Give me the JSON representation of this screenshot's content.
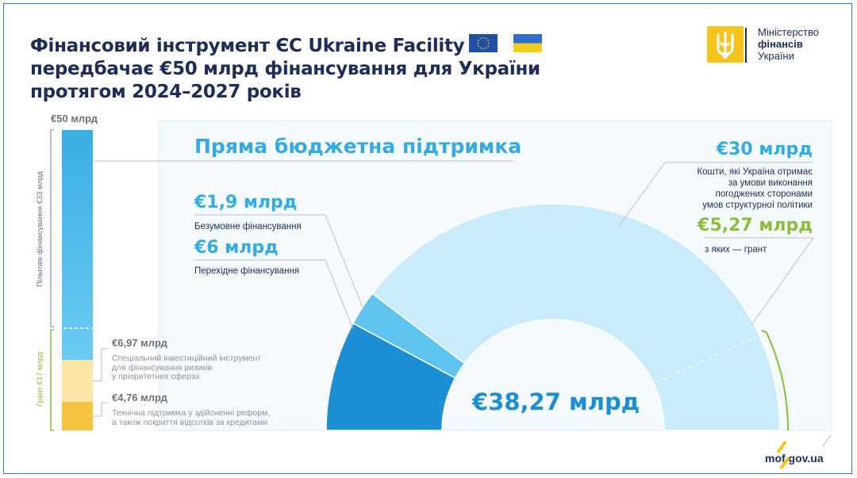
{
  "title_lines": [
    "Фінансовий інструмент ЄС Ukraine Facility",
    "передбачає €50 млрд фінансування для України",
    "протягом 2024–2027 років"
  ],
  "ministry": {
    "line1": "Міністерство",
    "line2": "фінансів",
    "line3": "України"
  },
  "website": "mof.gov.ua",
  "colors": {
    "navy": "#1d2d57",
    "blue": "#34aae3",
    "blue_dark": "#1c8fd4",
    "blue_mid": "#5fc3ef",
    "blue_light": "#c9ebfb",
    "yellow_light": "#fbe6a5",
    "yellow": "#f4c440",
    "green": "#8dbd3e",
    "gray_text": "#6b7380"
  },
  "chart_data": [
    {
      "type": "bar",
      "title": "€50 млрд",
      "stack": [
        {
          "name": "Пільгове фінансування €33 млрд",
          "value": 33
        },
        {
          "name": "€6,97 млрд",
          "value": 6.97
        },
        {
          "name": "€4,76 млрд",
          "value": 4.76
        }
      ],
      "total": 50,
      "brackets": [
        {
          "label": "Пільгове фінансування €33 млрд",
          "value": 33
        },
        {
          "label": "Грант €17 млрд",
          "value": 17
        }
      ],
      "annotations": [
        {
          "amount": "€6,97 млрд",
          "text": [
            "Спеціальний інвестиційний інструмент",
            "для фінансування ризиків",
            "у пріоритетних сферах"
          ]
        },
        {
          "amount": "€4,76 млрд",
          "text": [
            "Технічна підтримка у здійсненні реформ,",
            "а також покриття відсотків за кредитами"
          ]
        }
      ]
    },
    {
      "type": "pie",
      "title": "Пряма бюджетна підтримка",
      "center_label": "€38,27 млрд",
      "slices": [
        {
          "name": "Безумовне фінансування",
          "label": "€1,9 млрд",
          "value": 1.9
        },
        {
          "name": "Перехідне фінансування",
          "label": "€6 млрд",
          "value": 6
        },
        {
          "name": "Кошти, які Україна отримає за умови виконання погоджених сторонами умов структурної політики",
          "label": "€30 млрд",
          "value": 30
        }
      ],
      "total": 38.27,
      "annotations": {
        "conditional_amount": "€30 млрд",
        "conditional_text": [
          "Кошти, які Україна отримає",
          "за умови виконання",
          "погоджених сторонами",
          "умов структурної політики"
        ],
        "unconditional_amount": "€1,9 млрд",
        "unconditional_text": "Безумовне фінансування",
        "transitional_amount": "€6 млрд",
        "transitional_text": "Перехідне фінансування",
        "grant_amount": "€5,27 млрд",
        "grant_text": "з яких — грант",
        "grant_value": 5.27
      }
    }
  ]
}
